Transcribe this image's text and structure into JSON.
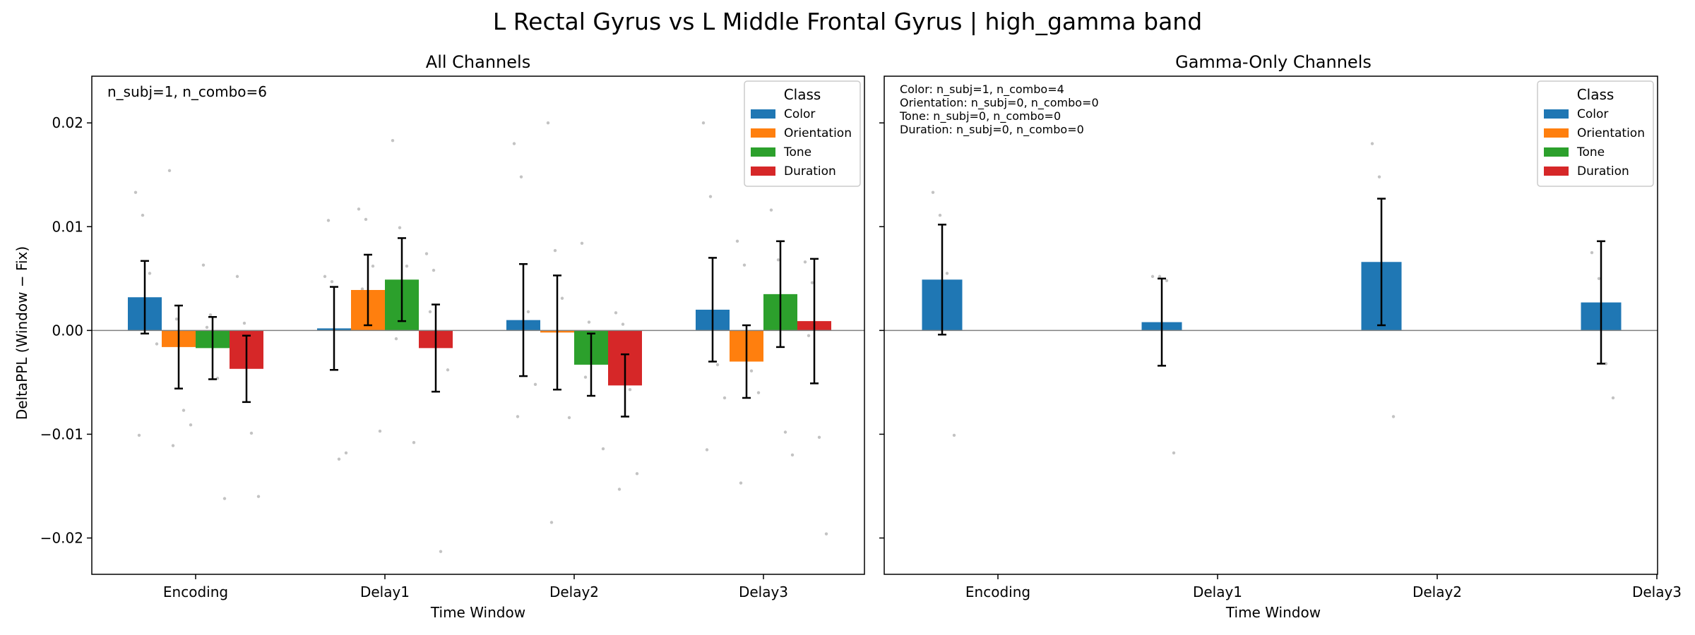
{
  "suptitle": "L Rectal Gyrus vs L Middle Frontal Gyrus  |  high_gamma band",
  "colors": {
    "Color": "#1f77b4",
    "Orientation": "#ff7f0e",
    "Tone": "#2ca02c",
    "Duration": "#d62728"
  },
  "chart_data": [
    {
      "type": "bar",
      "title": "All Channels",
      "xlabel": "Time Window",
      "ylabel": "DeltaPPL (Window − Fix)",
      "ylim": [
        -0.0235,
        0.0245
      ],
      "yticks": [
        -0.02,
        -0.01,
        0.0,
        0.01,
        0.02
      ],
      "ytick_labels": [
        "−0.02",
        "−0.01",
        "0.00",
        "0.01",
        "0.02"
      ],
      "categories": [
        "Encoding",
        "Delay1",
        "Delay2",
        "Delay3"
      ],
      "annotation": [
        "n_subj=1, n_combo=6"
      ],
      "legend": {
        "title": "Class",
        "position": "top-right"
      },
      "series": [
        {
          "name": "Color",
          "values": [
            0.0032,
            0.0002,
            0.001,
            0.002
          ],
          "err": [
            0.0035,
            0.004,
            0.0054,
            0.005
          ]
        },
        {
          "name": "Orientation",
          "values": [
            -0.0016,
            0.0039,
            -0.0002,
            -0.003
          ],
          "err": [
            0.004,
            0.0034,
            0.0055,
            0.0035
          ]
        },
        {
          "name": "Tone",
          "values": [
            -0.0017,
            0.0049,
            -0.0033,
            0.0035
          ],
          "err": [
            0.003,
            0.004,
            0.003,
            0.0051
          ]
        },
        {
          "name": "Duration",
          "values": [
            -0.0037,
            -0.0017,
            -0.0053,
            0.0009
          ],
          "err": [
            0.0032,
            0.0042,
            0.003,
            0.006
          ]
        }
      ],
      "scatter_points": [
        {
          "group": 0,
          "series": 0,
          "y": [
            0.0133,
            0.0111,
            0.0055,
            -0.0013,
            -0.0101
          ]
        },
        {
          "group": 0,
          "series": 1,
          "y": [
            0.0154,
            0.0011,
            -0.0077,
            -0.0091,
            -0.0111
          ]
        },
        {
          "group": 0,
          "series": 2,
          "y": [
            0.0063,
            0.0015,
            -0.0046,
            -0.0162,
            0.0003
          ]
        },
        {
          "group": 0,
          "series": 3,
          "y": [
            0.0052,
            0.0007,
            -0.0099,
            -0.016,
            -0.0025
          ]
        },
        {
          "group": 1,
          "series": 0,
          "y": [
            0.0052,
            0.0047,
            -0.0124,
            -0.0118,
            0.0106
          ]
        },
        {
          "group": 1,
          "series": 1,
          "y": [
            0.0117,
            0.0107,
            0.0062,
            -0.0097,
            0.004
          ]
        },
        {
          "group": 1,
          "series": 2,
          "y": [
            0.0183,
            0.0099,
            0.0062,
            -0.0108,
            -0.0008
          ]
        },
        {
          "group": 1,
          "series": 3,
          "y": [
            0.0074,
            0.0058,
            -0.0213,
            -0.0038,
            0.0018
          ]
        },
        {
          "group": 2,
          "series": 0,
          "y": [
            0.018,
            0.0148,
            0.0018,
            -0.0052,
            -0.0083
          ]
        },
        {
          "group": 2,
          "series": 1,
          "y": [
            0.02,
            0.0077,
            0.0031,
            -0.0084,
            -0.0185
          ]
        },
        {
          "group": 2,
          "series": 2,
          "y": [
            0.0084,
            0.0008,
            -0.0025,
            -0.0114,
            -0.0045
          ]
        },
        {
          "group": 2,
          "series": 3,
          "y": [
            0.0017,
            0.0006,
            -0.0057,
            -0.0138,
            -0.0153
          ]
        },
        {
          "group": 3,
          "series": 0,
          "y": [
            0.02,
            0.0129,
            -0.0033,
            -0.0065,
            -0.0115
          ]
        },
        {
          "group": 3,
          "series": 1,
          "y": [
            0.0086,
            0.0063,
            -0.0039,
            -0.006,
            -0.0147
          ]
        },
        {
          "group": 3,
          "series": 2,
          "y": [
            0.0116,
            0.0068,
            -0.0098,
            -0.012,
            0.0023
          ]
        },
        {
          "group": 3,
          "series": 3,
          "y": [
            0.0066,
            0.0046,
            -0.0103,
            -0.0196,
            -0.0005
          ]
        }
      ]
    },
    {
      "type": "bar",
      "title": "Gamma-Only Channels",
      "xlabel": "Time Window",
      "ylabel": "",
      "ylim": [
        -0.0235,
        0.0245
      ],
      "yticks": [
        -0.02,
        -0.01,
        0.0,
        0.01,
        0.02
      ],
      "ytick_labels": [],
      "categories": [
        "Encoding",
        "Delay1",
        "Delay2",
        "Delay3"
      ],
      "annotation": [
        "Color: n_subj=1, n_combo=4",
        "Orientation: n_subj=0, n_combo=0",
        "Tone: n_subj=0, n_combo=0",
        "Duration: n_subj=0, n_combo=0"
      ],
      "legend": {
        "title": "Class",
        "position": "top-right"
      },
      "series": [
        {
          "name": "Color",
          "values": [
            0.0049,
            0.0008,
            0.0066,
            0.0027
          ],
          "err": [
            0.0053,
            0.0042,
            0.0061,
            0.0059
          ]
        }
      ],
      "scatter_points": [
        {
          "group": 0,
          "series": 0,
          "y": [
            0.0133,
            0.0111,
            0.0055,
            -0.0101
          ]
        },
        {
          "group": 1,
          "series": 0,
          "y": [
            0.0052,
            0.0052,
            0.0048,
            -0.0118
          ]
        },
        {
          "group": 2,
          "series": 0,
          "y": [
            0.018,
            0.0148,
            0.0018,
            -0.0083
          ]
        },
        {
          "group": 3,
          "series": 0,
          "y": [
            0.0075,
            0.005,
            -0.0032,
            -0.0065
          ]
        }
      ]
    }
  ]
}
